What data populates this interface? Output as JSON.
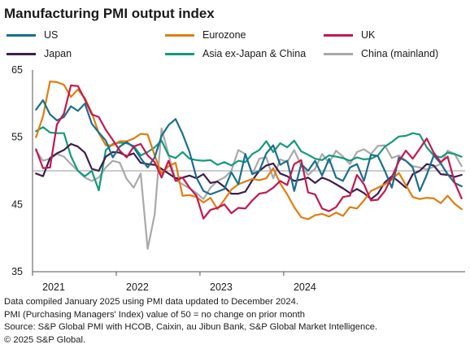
{
  "title": "Manufacturing PMI output index",
  "notes": [
    "Data compiled January 2025 using PMI data updated to December 2024.",
    "PMI (Purchasing Managers' Index) value of 50 = no change on prior month",
    "Source: S&P Global PMI with HCOB, Caixin, au Jibun Bank, S&P Global Market Intelligence.",
    "© 2025 S&P Global."
  ],
  "chart_data": {
    "type": "line",
    "title": "Manufacturing PMI output index",
    "ylim": [
      35,
      65
    ],
    "yticks": [
      35,
      45,
      55,
      65
    ],
    "reference_line": 50,
    "x_tick_labels": [
      "2021",
      "2022",
      "2023",
      "2024"
    ],
    "x_start": "2021-01",
    "x_end": "2024-12",
    "grid": false,
    "legend_position": "top",
    "series": [
      {
        "name": "US",
        "color": "#1a6f8c",
        "values": [
          59.1,
          60.5,
          58.4,
          57.5,
          58.0,
          59.6,
          58.9,
          60.0,
          57.0,
          55.7,
          54.5,
          52.0,
          53.6,
          54.3,
          53.5,
          51.9,
          50.5,
          52.0,
          55.2,
          56.8,
          57.7,
          55.5,
          52.8,
          49.0,
          47.0,
          46.5,
          46.9,
          47.3,
          49.8,
          48.0,
          52.5,
          49.5,
          50.0,
          52.6,
          53.8,
          50.9,
          51.5,
          47.0,
          51.0,
          50.0,
          51.5,
          49.3,
          51.8,
          49.0,
          48.5,
          50.5,
          51.0,
          48.5,
          52.4,
          52.2,
          50.0,
          47.5,
          52.0,
          51.5,
          50.5,
          47.0,
          49.4,
          52.3,
          51.1,
          49.5,
          48.2,
          47.7
        ]
      },
      {
        "name": "Eurozone",
        "color": "#e07d10",
        "values": [
          55.0,
          58.1,
          63.3,
          63.2,
          62.8,
          61.0,
          62.1,
          60.8,
          58.6,
          55.6,
          53.8,
          53.8,
          54.4,
          54.4,
          54.8,
          55.5,
          55.4,
          52.3,
          49.6,
          50.7,
          51.2,
          46.3,
          46.4,
          46.1,
          45.3,
          46.0,
          44.3,
          45.7,
          47.2,
          48.0,
          48.4,
          48.8,
          48.6,
          48.9,
          50.4,
          48.1,
          46.5,
          44.6,
          43.1,
          42.8,
          43.4,
          43.6,
          43.2,
          43.8,
          43.3,
          44.6,
          44.4,
          45.6,
          47.0,
          47.5,
          48.0,
          48.7,
          49.7,
          47.9,
          46.1,
          45.8,
          46.0,
          45.9,
          45.2,
          46.3,
          45.1,
          44.3
        ]
      },
      {
        "name": "UK",
        "color": "#c4184f",
        "values": [
          53.2,
          50.4,
          50.5,
          56.9,
          58.5,
          62.7,
          62.6,
          60.6,
          58.4,
          58.0,
          56.1,
          54.6,
          53.0,
          52.0,
          53.6,
          54.0,
          52.3,
          51.3,
          49.0,
          51.5,
          48.5,
          49.0,
          47.5,
          46.3,
          42.9,
          44.2,
          44.5,
          45.0,
          43.7,
          44.5,
          44.4,
          45.6,
          46.6,
          46.8,
          47.5,
          48.5,
          47.9,
          51.0,
          51.6,
          46.8,
          46.5,
          44.4,
          44.0,
          44.6,
          46.1,
          46.3,
          49.4,
          48.0,
          45.6,
          45.7,
          47.0,
          49.1,
          51.4,
          53.0,
          51.8,
          53.3,
          54.8,
          52.7,
          51.3,
          52.1,
          48.3,
          45.9
        ]
      },
      {
        "name": "Japan",
        "color": "#3d1e4b",
        "values": [
          49.6,
          49.2,
          51.9,
          52.6,
          53.1,
          54.0,
          53.6,
          52.7,
          50.3,
          50.0,
          52.1,
          52.8,
          52.7,
          52.2,
          52.6,
          51.2,
          51.0,
          50.9,
          50.3,
          49.6,
          48.9,
          49.0,
          49.3,
          48.9,
          49.5,
          48.2,
          48.4,
          47.6,
          46.6,
          46.6,
          46.9,
          48.6,
          50.0,
          50.8,
          51.1,
          49.6,
          49.2,
          48.5,
          48.7,
          49.0,
          48.2,
          49.0,
          48.6,
          48.0,
          47.4,
          46.7,
          47.3,
          46.7,
          45.8,
          46.6,
          48.3,
          49.2,
          48.4,
          47.5,
          49.5,
          50.0,
          51.0,
          50.8,
          49.5,
          49.4,
          49.1,
          49.4
        ]
      },
      {
        "name": "Asia ex-Japan & China",
        "color": "#139a7c",
        "values": [
          55.9,
          56.5,
          55.7,
          55.6,
          55.6,
          52.2,
          50.0,
          49.2,
          50.0,
          47.1,
          53.1,
          54.0,
          54.2,
          54.1,
          53.7,
          52.3,
          52.8,
          53.5,
          54.5,
          52.3,
          51.9,
          52.8,
          51.8,
          51.6,
          51.5,
          51.6,
          50.9,
          51.3,
          50.8,
          51.5,
          51.3,
          52.5,
          53.1,
          54.4,
          52.8,
          54.1,
          53.5,
          54.5,
          52.9,
          52.4,
          51.8,
          51.6,
          52.3,
          52.1,
          51.9,
          51.5,
          52.0,
          51.7,
          51.8,
          52.3,
          53.6,
          54.3,
          55.1,
          55.2,
          55.6,
          55.4,
          53.5,
          52.3,
          52.0,
          52.7,
          52.5,
          52.1
        ]
      },
      {
        "name": "China (mainland)",
        "color": "#a9a9a9",
        "values": [
          53.0,
          51.5,
          51.8,
          52.5,
          52.1,
          51.0,
          50.0,
          49.0,
          48.5,
          49.0,
          50.5,
          51.5,
          51.2,
          48.8,
          47.5,
          49.6,
          38.4,
          43.5,
          56.3,
          52.4,
          48.6,
          48.0,
          47.4,
          46.7,
          45.8,
          47.5,
          48.5,
          49.0,
          50.0,
          53.1,
          52.5,
          49.5,
          51.8,
          52.0,
          48.9,
          51.7,
          51.3,
          53.1,
          50.8,
          49.4,
          50.3,
          52.5,
          51.2,
          53.0,
          52.1,
          51.0,
          52.8,
          53.2,
          52.5,
          53.7,
          53.8,
          51.9,
          52.3,
          51.5,
          50.7,
          50.5,
          50.2,
          50.6,
          51.0,
          53.0,
          52.5,
          50.7
        ]
      }
    ]
  }
}
